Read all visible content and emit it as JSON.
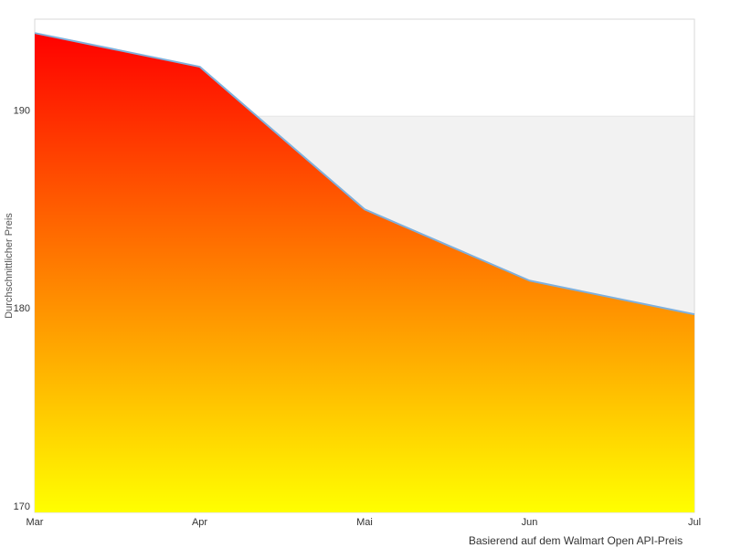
{
  "chart": {
    "y_axis_title": "Durchschnittlicher Preis",
    "caption": "Basierend auf dem Walmart Open API-Preis"
  },
  "chart_data": {
    "type": "area",
    "categories": [
      "Mar",
      "Apr",
      "Mai",
      "Jun",
      "Jul"
    ],
    "values": [
      194.2,
      192.5,
      185.3,
      181.7,
      180.0
    ],
    "series_name": "Durchschnittlicher Preis",
    "title": "",
    "xlabel": "Basierend auf dem Walmart Open API-Preis",
    "ylabel": "Durchschnittlicher Preis",
    "ylim": [
      170,
      194.9
    ],
    "yticks": [
      170,
      180,
      190
    ],
    "grid_band": [
      180,
      190
    ],
    "grid": "horizontal",
    "legend": false,
    "colors": {
      "area_gradient_top": "#ff0000",
      "area_gradient_bottom": "#ffff00",
      "line": "#7fb0dc",
      "band": "#f2f2f2",
      "gridline": "#e6e6e6",
      "border": "#d9d9d9",
      "tick_text": "#333333",
      "axis_title_text": "#555555",
      "caption_text": "#333333",
      "background": "#ffffff"
    }
  }
}
